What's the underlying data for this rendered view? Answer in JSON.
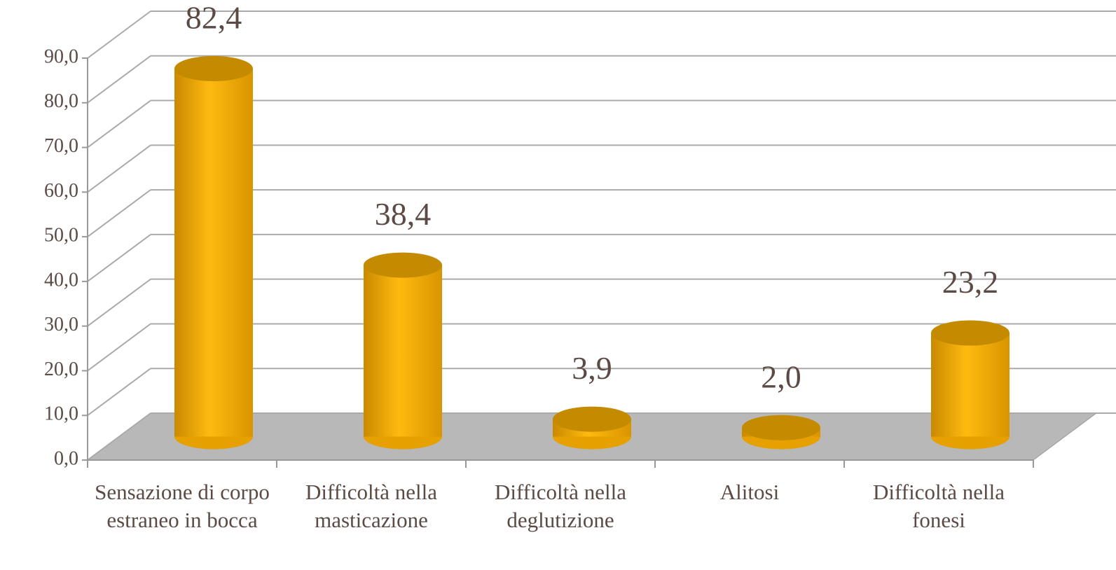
{
  "chart_data": {
    "type": "bar",
    "categories": [
      "Sensazione di corpo estraneo in bocca",
      "Difficoltà nella masticazione",
      "Difficoltà nella deglutizione",
      "Alitosi",
      "Difficoltà nella fonesi"
    ],
    "values": [
      82.4,
      38.4,
      3.9,
      2.0,
      23.2
    ],
    "value_labels": [
      "82,4",
      "38,4",
      "3,9",
      "2,0",
      "23,2"
    ],
    "color": "#ffb400",
    "ylim": [
      0,
      90
    ],
    "yticks": [
      {
        "value": 0,
        "label": "0,0"
      },
      {
        "value": 10,
        "label": "10,0"
      },
      {
        "value": 20,
        "label": "20,0"
      },
      {
        "value": 30,
        "label": "30,0"
      },
      {
        "value": 40,
        "label": "40,0"
      },
      {
        "value": 50,
        "label": "50,0"
      },
      {
        "value": 60,
        "label": "60,0"
      },
      {
        "value": 70,
        "label": "70,0"
      },
      {
        "value": 80,
        "label": "80,0"
      },
      {
        "value": 90,
        "label": "90,0"
      }
    ],
    "grid": true
  }
}
